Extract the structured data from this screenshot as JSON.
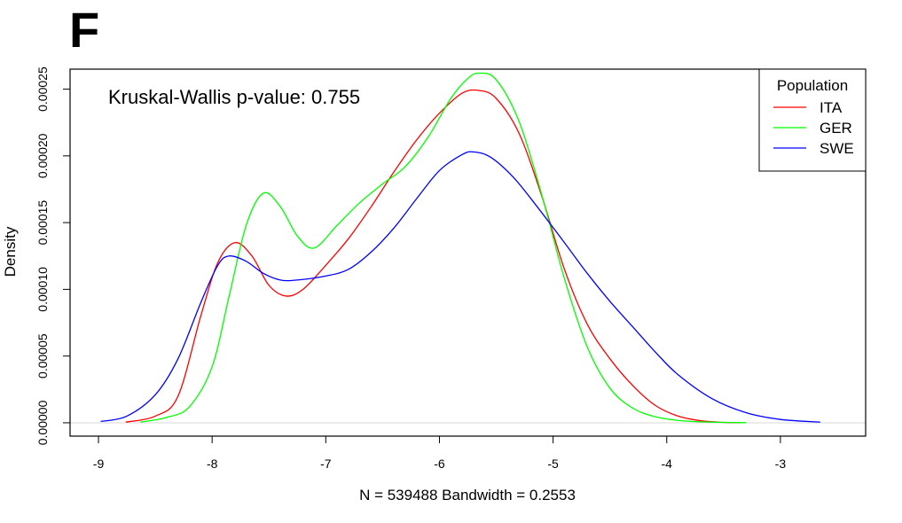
{
  "panel_label": "F",
  "chart_data": {
    "type": "line",
    "annotation": "Kruskal-Wallis p-value: 0.755",
    "xlabel": "N = 539488   Bandwidth = 0.2553",
    "ylabel": "Density",
    "xlim": [
      -9.25,
      -2.25
    ],
    "ylim": [
      -1e-05,
      0.000265
    ],
    "x_ticks": [
      -9,
      -8,
      -7,
      -6,
      -5,
      -4,
      -3
    ],
    "x_tick_labels": [
      "-9",
      "-8",
      "-7",
      "-6",
      "-5",
      "-4",
      "-3"
    ],
    "y_ticks": [
      0,
      5e-05,
      0.0001,
      0.00015,
      0.0002,
      0.00025
    ],
    "y_tick_labels": [
      "0.00000",
      "0.00005",
      "0.00010",
      "0.00015",
      "0.00020",
      "0.00025"
    ],
    "baseline": 0,
    "legend": {
      "title": "Population",
      "placement": "top-right"
    },
    "series": [
      {
        "name": "ITA",
        "color": "#ff0000",
        "x": [
          -8.76,
          -8.5,
          -8.3,
          -8.1,
          -7.95,
          -7.8,
          -7.65,
          -7.5,
          -7.35,
          -7.2,
          -7.0,
          -6.8,
          -6.6,
          -6.4,
          -6.2,
          -6.0,
          -5.8,
          -5.65,
          -5.5,
          -5.3,
          -5.1,
          -4.9,
          -4.7,
          -4.5,
          -4.3,
          -4.1,
          -3.9,
          -3.7,
          -3.5,
          -3.35
        ],
        "y": [
          5e-07,
          5e-06,
          2e-05,
          8e-05,
          0.00012,
          0.000135,
          0.000125,
          0.000103,
          9.5e-05,
          0.0001,
          0.000118,
          0.000138,
          0.000162,
          0.000188,
          0.000212,
          0.000232,
          0.000247,
          0.000249,
          0.000243,
          0.000217,
          0.00017,
          0.000115,
          7.4e-05,
          4.8e-05,
          2.8e-05,
          1.3e-05,
          5e-06,
          1.5e-06,
          3e-07,
          1e-07
        ]
      },
      {
        "name": "GER",
        "color": "#00ff00",
        "x": [
          -8.63,
          -8.4,
          -8.2,
          -8.0,
          -7.85,
          -7.7,
          -7.55,
          -7.4,
          -7.25,
          -7.1,
          -6.9,
          -6.7,
          -6.5,
          -6.3,
          -6.1,
          -5.9,
          -5.75,
          -5.65,
          -5.5,
          -5.3,
          -5.1,
          -4.9,
          -4.7,
          -4.5,
          -4.3,
          -4.1,
          -3.9,
          -3.7,
          -3.5,
          -3.3
        ],
        "y": [
          5e-07,
          4e-06,
          1.2e-05,
          4.2e-05,
          9.5e-05,
          0.000148,
          0.000172,
          0.000162,
          0.00014,
          0.000131,
          0.000148,
          0.000165,
          0.000179,
          0.000192,
          0.000214,
          0.000243,
          0.000258,
          0.000262,
          0.000257,
          0.000226,
          0.000171,
          0.000108,
          5.7e-05,
          2.6e-05,
          1.1e-05,
          4.5e-06,
          1.8e-06,
          7e-07,
          3e-07,
          1e-07
        ]
      },
      {
        "name": "SWE",
        "color": "#0000ff",
        "x": [
          -8.98,
          -8.75,
          -8.5,
          -8.3,
          -8.1,
          -7.95,
          -7.85,
          -7.7,
          -7.55,
          -7.4,
          -7.25,
          -7.0,
          -6.8,
          -6.6,
          -6.4,
          -6.2,
          -6.0,
          -5.8,
          -5.7,
          -5.55,
          -5.35,
          -5.15,
          -4.9,
          -4.7,
          -4.5,
          -4.3,
          -4.1,
          -3.9,
          -3.6,
          -3.3,
          -3.0,
          -2.65
        ],
        "y": [
          1e-06,
          5e-06,
          2.1e-05,
          4.8e-05,
          9e-05,
          0.000118,
          0.000125,
          0.000121,
          0.000112,
          0.000107,
          0.000107,
          0.00011,
          0.000115,
          0.000128,
          0.000146,
          0.000168,
          0.000189,
          0.000201,
          0.000203,
          0.000199,
          0.000184,
          0.000163,
          0.000135,
          0.000112,
          9.1e-05,
          7.2e-05,
          5.3e-05,
          3.6e-05,
          1.8e-05,
          7.5e-06,
          2.5e-06,
          5e-07
        ]
      }
    ]
  }
}
